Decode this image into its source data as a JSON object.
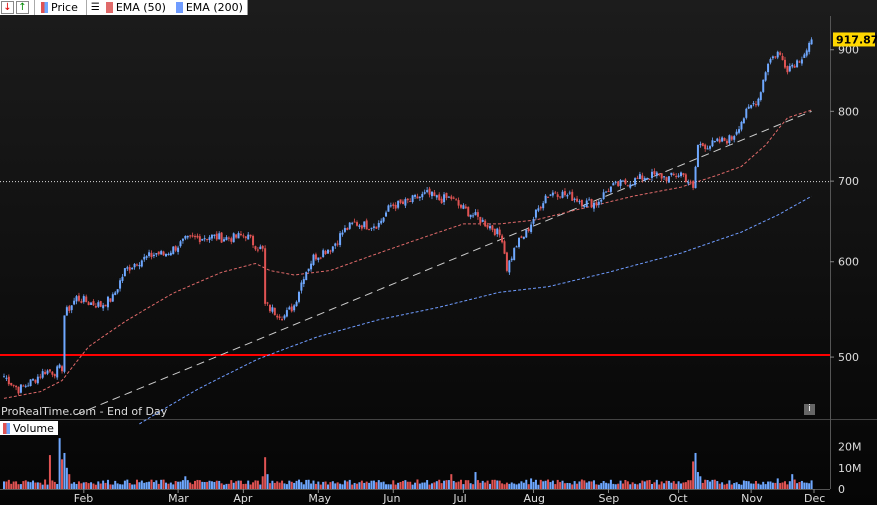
{
  "toolbar": {
    "price_label": "Price",
    "ema50_label": "EMA (50)",
    "ema200_label": "EMA (200)"
  },
  "source_label": "ProRealTime.com - End of Day",
  "volume_label": "Volume",
  "colors": {
    "up": "#6fa8ff",
    "down": "#e05353",
    "ema50": "#e06a6a",
    "ema200": "#6f9cff",
    "support": "#ff0000",
    "trend": "#cccccc",
    "last_price_bg": "#ffd700"
  },
  "chart_data": {
    "type": "candlestick",
    "y_scale": "log",
    "ylim": [
      445,
      960
    ],
    "y_ticks": [
      500,
      600,
      700,
      800,
      900
    ],
    "y_tick_labels": [
      "500",
      "600",
      "700",
      "800",
      "900"
    ],
    "x_labels": [
      "Feb",
      "Mar",
      "Apr",
      "May",
      "Jun",
      "Jul",
      "Aug",
      "Sep",
      "Oct",
      "Nov",
      "Dec"
    ],
    "last_price": 917.87,
    "last_price_label": "917.87",
    "close_anchors": [
      [
        0,
        482
      ],
      [
        6,
        470
      ],
      [
        12,
        478
      ],
      [
        17,
        487
      ],
      [
        21,
        486
      ],
      [
        24,
        490
      ],
      [
        25,
        542
      ],
      [
        30,
        560
      ],
      [
        35,
        555
      ],
      [
        40,
        552
      ],
      [
        45,
        560
      ],
      [
        50,
        590
      ],
      [
        55,
        600
      ],
      [
        60,
        606
      ],
      [
        63,
        610
      ],
      [
        66,
        608
      ],
      [
        70,
        615
      ],
      [
        75,
        625
      ],
      [
        80,
        628
      ],
      [
        85,
        630
      ],
      [
        90,
        628
      ],
      [
        95,
        628
      ],
      [
        100,
        632
      ],
      [
        103,
        622
      ],
      [
        107,
        613
      ],
      [
        108,
        552
      ],
      [
        112,
        545
      ],
      [
        116,
        541
      ],
      [
        120,
        552
      ],
      [
        124,
        585
      ],
      [
        128,
        605
      ],
      [
        132,
        612
      ],
      [
        136,
        618
      ],
      [
        140,
        635
      ],
      [
        145,
        646
      ],
      [
        150,
        643
      ],
      [
        155,
        645
      ],
      [
        160,
        668
      ],
      [
        165,
        670
      ],
      [
        170,
        677
      ],
      [
        175,
        683
      ],
      [
        180,
        676
      ],
      [
        185,
        678
      ],
      [
        188,
        668
      ],
      [
        192,
        660
      ],
      [
        197,
        650
      ],
      [
        202,
        640
      ],
      [
        206,
        628
      ],
      [
        208,
        593
      ],
      [
        212,
        620
      ],
      [
        216,
        634
      ],
      [
        220,
        658
      ],
      [
        224,
        681
      ],
      [
        228,
        686
      ],
      [
        232,
        682
      ],
      [
        236,
        678
      ],
      [
        240,
        672
      ],
      [
        245,
        671
      ],
      [
        250,
        690
      ],
      [
        255,
        696
      ],
      [
        260,
        700
      ],
      [
        265,
        706
      ],
      [
        270,
        708
      ],
      [
        275,
        704
      ],
      [
        280,
        711
      ],
      [
        283,
        700
      ],
      [
        285,
        688
      ],
      [
        287,
        750
      ],
      [
        292,
        750
      ],
      [
        297,
        756
      ],
      [
        301,
        760
      ],
      [
        305,
        786
      ],
      [
        309,
        808
      ],
      [
        312,
        820
      ],
      [
        316,
        880
      ],
      [
        320,
        895
      ],
      [
        324,
        870
      ],
      [
        328,
        880
      ],
      [
        332,
        900
      ],
      [
        334,
        918
      ]
    ],
    "volume_ylim": [
      0,
      25
    ],
    "volume_ticks": [
      0,
      10,
      20
    ],
    "volume_tick_labels": [
      "0",
      "10M",
      "20M"
    ],
    "volume_spikes": [
      [
        19,
        16
      ],
      [
        23,
        24
      ],
      [
        24,
        14
      ],
      [
        25,
        17
      ],
      [
        26,
        10
      ],
      [
        27,
        7
      ],
      [
        75,
        6
      ],
      [
        107,
        6
      ],
      [
        108,
        15
      ],
      [
        109,
        7
      ],
      [
        185,
        7
      ],
      [
        195,
        8
      ],
      [
        218,
        5
      ],
      [
        285,
        13
      ],
      [
        286,
        17
      ],
      [
        287,
        8
      ],
      [
        288,
        6
      ],
      [
        320,
        5
      ],
      [
        326,
        7
      ]
    ],
    "ema50_anchors": [
      [
        0,
        462
      ],
      [
        15,
        468
      ],
      [
        24,
        478
      ],
      [
        35,
        510
      ],
      [
        50,
        535
      ],
      [
        70,
        565
      ],
      [
        90,
        588
      ],
      [
        104,
        598
      ],
      [
        110,
        590
      ],
      [
        120,
        585
      ],
      [
        135,
        590
      ],
      [
        150,
        605
      ],
      [
        170,
        625
      ],
      [
        190,
        645
      ],
      [
        205,
        645
      ],
      [
        220,
        650
      ],
      [
        240,
        665
      ],
      [
        260,
        680
      ],
      [
        280,
        692
      ],
      [
        295,
        708
      ],
      [
        305,
        720
      ],
      [
        315,
        750
      ],
      [
        324,
        790
      ],
      [
        334,
        802
      ]
    ],
    "ema200_anchors": [
      [
        56,
        440
      ],
      [
        80,
        470
      ],
      [
        105,
        498
      ],
      [
        130,
        520
      ],
      [
        155,
        537
      ],
      [
        180,
        550
      ],
      [
        205,
        566
      ],
      [
        225,
        572
      ],
      [
        250,
        588
      ],
      [
        280,
        610
      ],
      [
        305,
        635
      ],
      [
        320,
        656
      ],
      [
        334,
        680
      ]
    ],
    "support_level": 502,
    "trendline": [
      [
        30,
        448
      ],
      [
        334,
        800
      ]
    ]
  }
}
